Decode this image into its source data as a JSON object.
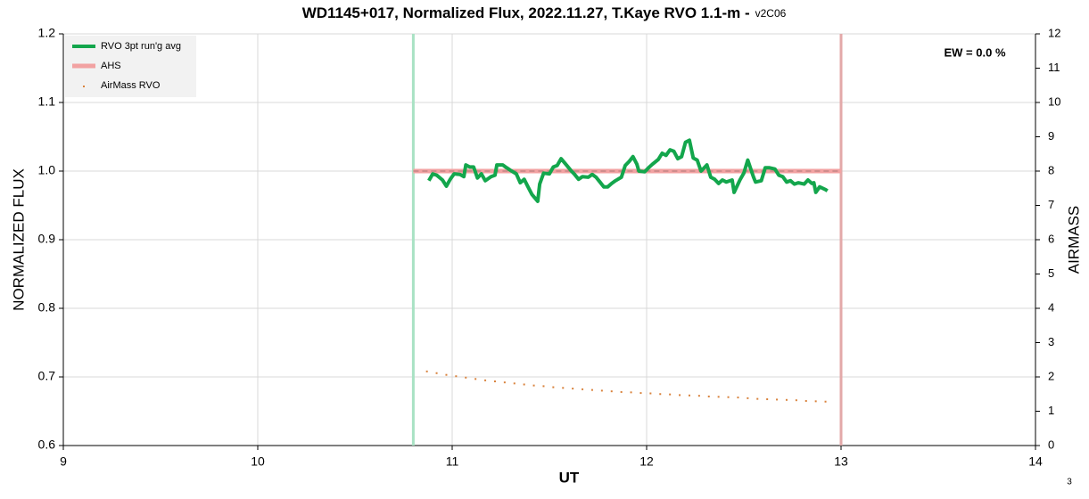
{
  "chart_data": {
    "type": "line",
    "title": "WD1145+017, Normalized Flux, 2022.11.27, T.Kaye RVO 1.1-m -",
    "subtitle": "v2C06",
    "x_label": "UT",
    "y_label": "NORMALIZED FLUX",
    "y2_label": "AIRMASS",
    "annotations": [
      "EW = 0.0 %",
      "3"
    ],
    "xlim": [
      9,
      14
    ],
    "xticks": [
      9,
      10,
      11,
      12,
      13,
      14
    ],
    "ylim": [
      0.6,
      1.2
    ],
    "yticks": [
      0.6,
      0.7,
      0.8,
      0.9,
      {
        "value": 1,
        "label": "1.0"
      },
      1.1,
      1.2
    ],
    "y2lim": [
      0,
      12
    ],
    "y2ticks": [
      0,
      1,
      2,
      3,
      4,
      5,
      6,
      7,
      8,
      9,
      10,
      11,
      12
    ],
    "grid": true,
    "legend": "upper left",
    "vlines": [
      {
        "x": 10.8,
        "color": "#a9e2c4"
      },
      {
        "x": 13.0,
        "color": "#e3a9a9"
      }
    ],
    "series": [
      {
        "name": "RVO 3pt run'g avg",
        "color": "#13a64c",
        "style": "line",
        "x": [
          10.88,
          10.9,
          10.92,
          10.95,
          10.97,
          10.99,
          11.01,
          11.04,
          11.06,
          11.07,
          11.09,
          11.11,
          11.13,
          11.15,
          11.17,
          11.2,
          11.22,
          11.23,
          11.26,
          11.28,
          11.3,
          11.33,
          11.35,
          11.37,
          11.39,
          11.41,
          11.44,
          11.45,
          11.47,
          11.5,
          11.52,
          11.54,
          11.56,
          11.59,
          11.61,
          11.63,
          11.65,
          11.67,
          11.7,
          11.72,
          11.74,
          11.76,
          11.78,
          11.8,
          11.82,
          11.84,
          11.87,
          11.89,
          11.91,
          11.93,
          11.95,
          11.96,
          11.99,
          12.01,
          12.03,
          12.06,
          12.08,
          12.1,
          12.12,
          12.14,
          12.16,
          12.18,
          12.2,
          12.22,
          12.24,
          12.26,
          12.28,
          12.31,
          12.33,
          12.35,
          12.37,
          12.39,
          12.41,
          12.44,
          12.45,
          12.48,
          12.5,
          12.52,
          12.55,
          12.56,
          12.59,
          12.61,
          12.63,
          12.66,
          12.68,
          12.7,
          12.72,
          12.74,
          12.76,
          12.78,
          12.81,
          12.83,
          12.85,
          12.86,
          12.87,
          12.89,
          12.92,
          12.93
        ],
        "values": [
          0.986,
          0.996,
          0.994,
          0.987,
          0.978,
          0.988,
          0.996,
          0.995,
          0.992,
          1.009,
          1.006,
          1.006,
          0.99,
          0.996,
          0.986,
          0.992,
          0.994,
          1.009,
          1.009,
          1.005,
          1.001,
          0.996,
          0.983,
          0.988,
          0.977,
          0.966,
          0.956,
          0.981,
          0.997,
          0.996,
          1.006,
          1.008,
          1.018,
          1.008,
          1.001,
          0.995,
          0.988,
          0.992,
          0.991,
          0.995,
          0.991,
          0.984,
          0.977,
          0.977,
          0.982,
          0.986,
          0.991,
          1.008,
          1.014,
          1.021,
          1.01,
          1.0,
          0.999,
          1.005,
          1.01,
          1.017,
          1.026,
          1.023,
          1.031,
          1.029,
          1.018,
          1.021,
          1.042,
          1.045,
          1.019,
          1.016,
          1.0,
          1.009,
          0.991,
          0.988,
          0.982,
          0.987,
          0.984,
          0.987,
          0.969,
          0.987,
          0.997,
          1.016,
          0.991,
          0.984,
          0.986,
          1.005,
          1.005,
          1.003,
          0.994,
          0.992,
          0.984,
          0.986,
          0.981,
          0.983,
          0.981,
          0.987,
          0.982,
          0.983,
          0.969,
          0.977,
          0.973,
          0.971
        ]
      },
      {
        "name": "AHS",
        "color": "#f2a2a2",
        "style": "band",
        "x": [
          10.8,
          13.0
        ],
        "values": [
          1,
          1
        ]
      },
      {
        "name": "AirMass RVO",
        "color": "#d9823c",
        "style": "dots",
        "axis": "y2",
        "x": [
          10.87,
          10.92,
          10.97,
          11.02,
          11.07,
          11.12,
          11.17,
          11.22,
          11.27,
          11.32,
          11.37,
          11.42,
          11.47,
          11.52,
          11.57,
          11.62,
          11.67,
          11.72,
          11.77,
          11.82,
          11.87,
          11.92,
          11.97,
          12.02,
          12.07,
          12.12,
          12.17,
          12.22,
          12.27,
          12.32,
          12.37,
          12.42,
          12.47,
          12.52,
          12.57,
          12.62,
          12.67,
          12.72,
          12.77,
          12.82,
          12.87,
          12.92
        ],
        "values": [
          2.16,
          2.11,
          2.06,
          2.02,
          1.98,
          1.94,
          1.9,
          1.87,
          1.84,
          1.81,
          1.78,
          1.75,
          1.73,
          1.7,
          1.68,
          1.66,
          1.64,
          1.62,
          1.6,
          1.58,
          1.56,
          1.55,
          1.53,
          1.52,
          1.5,
          1.49,
          1.47,
          1.46,
          1.45,
          1.43,
          1.42,
          1.41,
          1.4,
          1.38,
          1.36,
          1.35,
          1.34,
          1.33,
          1.32,
          1.3,
          1.29,
          1.28
        ]
      }
    ]
  }
}
